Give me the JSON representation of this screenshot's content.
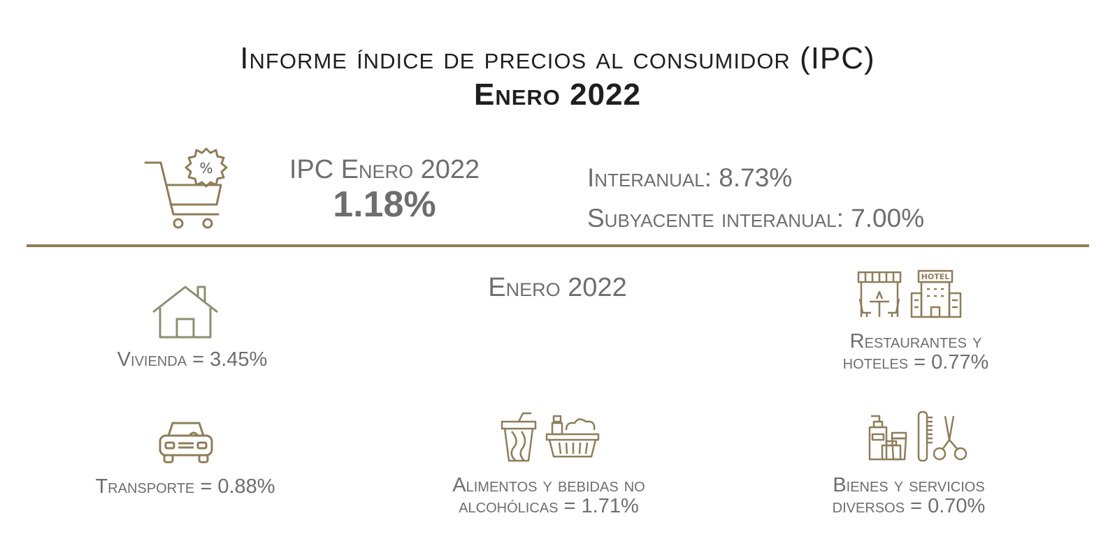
{
  "title": {
    "line1": "Informe índice de precios al consumidor (IPC)",
    "line2": "Enero 2022"
  },
  "summary": {
    "ipc_label": "IPC Enero 2022",
    "ipc_value": "1.18%",
    "interanual": "Interanual: 8.73%",
    "subyacente": "Subyacente interanual: 7.00%"
  },
  "section_title": "Enero 2022",
  "categories": {
    "vivienda": "Vivienda = 3.45%",
    "restaurantes_line1": "Restaurantes y",
    "restaurantes_line2": "hoteles = 0.77%",
    "transporte": "Transporte = 0.88%",
    "alimentos_line1": "Alimentos y bebidas no",
    "alimentos_line2": "alcohólicas = 1.71%",
    "bienes_line1": "Bienes y servicios",
    "bienes_line2": "diversos = 0.70%"
  },
  "hotel_sign": "HOTEL",
  "icons": [
    "shopping-cart-percent-icon",
    "house-icon",
    "restaurant-icon",
    "hotel-icon",
    "car-icon",
    "drink-icon",
    "basket-icon",
    "cosmetics-icon",
    "comb-scissors-icon"
  ],
  "colors": {
    "accent": "#8e7d5a",
    "house": "#8a9070",
    "text_gray": "#6e6e6e",
    "title": "#1f1f1f"
  }
}
